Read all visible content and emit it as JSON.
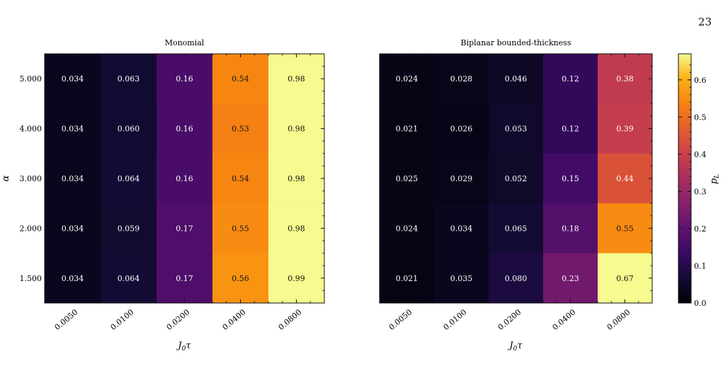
{
  "page_number": "23",
  "colorbar": {
    "label": "p_L",
    "ticks": [
      "0.0",
      "0.1",
      "0.2",
      "0.3",
      "0.4",
      "0.5",
      "0.6"
    ],
    "range": [
      0.0,
      0.67
    ],
    "colormap": "inferno"
  },
  "chart_data": [
    {
      "type": "heatmap",
      "title": "Monomial",
      "xlabel": "J_0 τ",
      "ylabel": "α",
      "x_categories": [
        "0.0050",
        "0.0100",
        "0.0200",
        "0.0400",
        "0.0800"
      ],
      "y_categories": [
        "5.000",
        "4.000",
        "3.000",
        "2.000",
        "1.500"
      ],
      "values": [
        [
          0.034,
          0.063,
          0.16,
          0.54,
          0.98
        ],
        [
          0.034,
          0.06,
          0.16,
          0.53,
          0.98
        ],
        [
          0.034,
          0.064,
          0.16,
          0.54,
          0.98
        ],
        [
          0.034,
          0.059,
          0.17,
          0.55,
          0.98
        ],
        [
          0.034,
          0.064,
          0.17,
          0.56,
          0.99
        ]
      ],
      "labels": [
        [
          "0.034",
          "0.063",
          "0.16",
          "0.54",
          "0.98"
        ],
        [
          "0.034",
          "0.060",
          "0.16",
          "0.53",
          "0.98"
        ],
        [
          "0.034",
          "0.064",
          "0.16",
          "0.54",
          "0.98"
        ],
        [
          "0.034",
          "0.059",
          "0.17",
          "0.55",
          "0.98"
        ],
        [
          "0.034",
          "0.064",
          "0.17",
          "0.56",
          "0.99"
        ]
      ]
    },
    {
      "type": "heatmap",
      "title": "Biplanar bounded-thickness",
      "xlabel": "J_0 τ",
      "ylabel": "",
      "x_categories": [
        "0.0050",
        "0.0100",
        "0.0200",
        "0.0400",
        "0.0800"
      ],
      "y_categories": [
        "5.000",
        "4.000",
        "3.000",
        "2.000",
        "1.500"
      ],
      "values": [
        [
          0.024,
          0.028,
          0.046,
          0.12,
          0.38
        ],
        [
          0.021,
          0.026,
          0.053,
          0.12,
          0.39
        ],
        [
          0.025,
          0.029,
          0.052,
          0.15,
          0.44
        ],
        [
          0.024,
          0.034,
          0.065,
          0.18,
          0.55
        ],
        [
          0.021,
          0.035,
          0.08,
          0.23,
          0.67
        ]
      ],
      "labels": [
        [
          "0.024",
          "0.028",
          "0.046",
          "0.12",
          "0.38"
        ],
        [
          "0.021",
          "0.026",
          "0.053",
          "0.12",
          "0.39"
        ],
        [
          "0.025",
          "0.029",
          "0.052",
          "0.15",
          "0.44"
        ],
        [
          "0.024",
          "0.034",
          "0.065",
          "0.18",
          "0.55"
        ],
        [
          "0.021",
          "0.035",
          "0.080",
          "0.23",
          "0.67"
        ]
      ]
    }
  ]
}
